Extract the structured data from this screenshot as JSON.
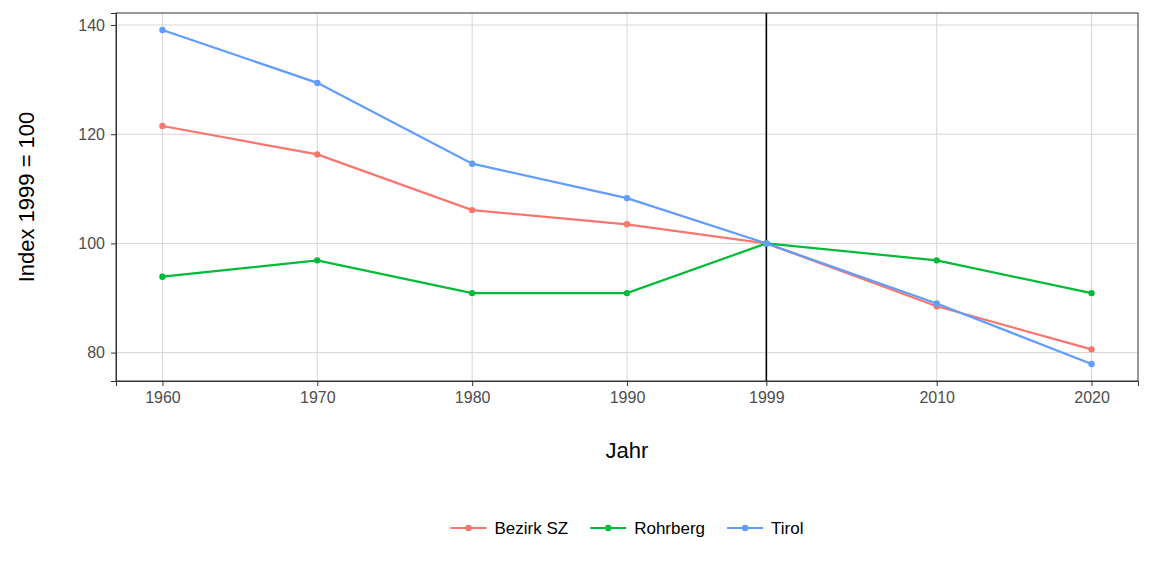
{
  "chart_data": {
    "type": "line",
    "x_label": "Jahr",
    "y_label": "Index 1999 = 100",
    "x": [
      1960,
      1970,
      1980,
      1990,
      1999,
      2010,
      2020
    ],
    "series": [
      {
        "name": "Bezirk SZ",
        "color": "#F8766D",
        "values": [
          121.5,
          116.3,
          106.1,
          103.5,
          100,
          88.5,
          80.6
        ]
      },
      {
        "name": "Rohrberg",
        "color": "#00BA38",
        "values": [
          93.9,
          96.9,
          90.9,
          90.9,
          100,
          96.9,
          90.9
        ]
      },
      {
        "name": "Tirol",
        "color": "#619CFF",
        "values": [
          139.1,
          129.4,
          114.6,
          108.3,
          100,
          89.0,
          77.9
        ]
      }
    ],
    "xlim": [
      1957,
      2023
    ],
    "xticks": [
      1960,
      1970,
      1980,
      1990,
      1999,
      2010,
      2020
    ],
    "ylim": [
      74.8,
      142.2
    ],
    "yticks": [
      80,
      100,
      120,
      140
    ],
    "reference_x": 1999,
    "grid": true,
    "legend": "bottom",
    "marker": "circle",
    "line_style": "solid"
  }
}
